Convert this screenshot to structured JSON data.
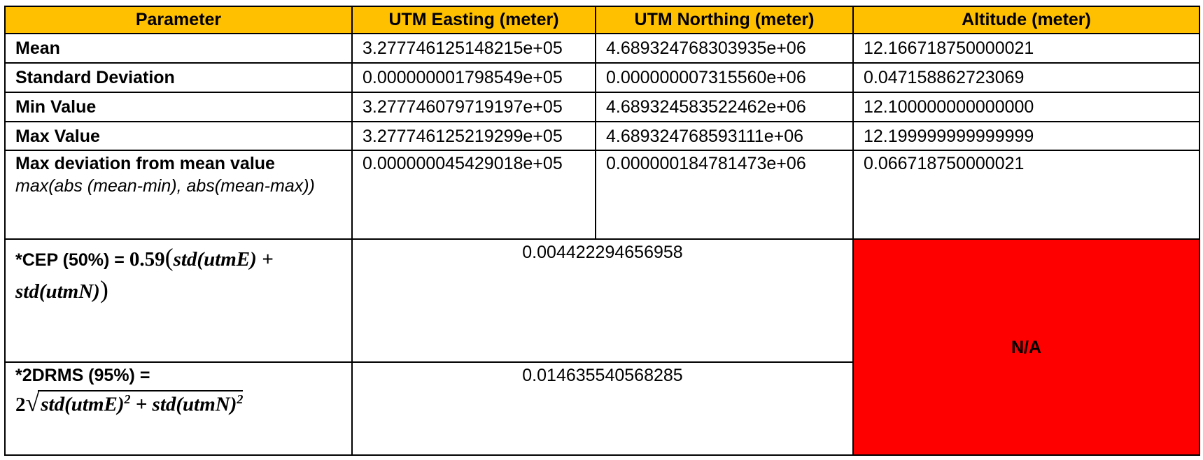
{
  "headers": [
    "Parameter",
    "UTM Easting (meter)",
    "UTM Northing (meter)",
    "Altitude (meter)"
  ],
  "rows": [
    {
      "label": "Mean",
      "easting": "3.277746125148215e+05",
      "northing": "4.689324768303935e+06",
      "altitude": "12.166718750000021"
    },
    {
      "label": "Standard Deviation",
      "easting": "0.000000001798549e+05",
      "northing": "0.000000007315560e+06",
      "altitude": "0.047158862723069"
    },
    {
      "label": "Min Value",
      "easting": "3.277746079719197e+05",
      "northing": "4.689324583522462e+06",
      "altitude": "12.100000000000000"
    },
    {
      "label": "Max Value",
      "easting": "3.277746125219299e+05",
      "northing": "4.689324768593111e+06",
      "altitude": "12.199999999999999"
    }
  ],
  "max_deviation": {
    "label": "Max deviation from mean value",
    "sublabel": "max(abs (mean-min), abs(mean-max))",
    "easting": "0.000000045429018e+05",
    "northing": "0.000000184781473e+06",
    "altitude": "0.066718750000021"
  },
  "cep": {
    "label_prefix": "*CEP (50%) = ",
    "coef": "0.59",
    "term1": "std(utmE)",
    "term2": "std(utmN)",
    "value": "0.004422294656958"
  },
  "drms": {
    "label_prefix": "*2DRMS (95%) =",
    "coef": "2",
    "term1": "std(utmE)",
    "term2": "std(utmN)",
    "exp": "2",
    "value": "0.014635540568285"
  },
  "altitude_na": "N/A",
  "colors": {
    "header_bg": "#ffc000",
    "na_bg": "#ff0000"
  }
}
